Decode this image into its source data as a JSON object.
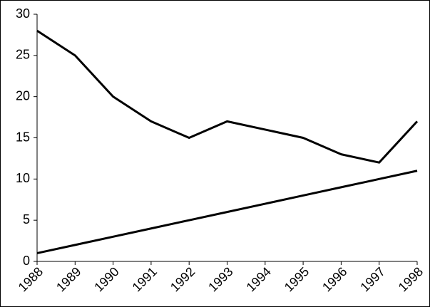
{
  "chart_data": {
    "type": "line",
    "x": [
      1988,
      1989,
      1990,
      1991,
      1992,
      1993,
      1994,
      1995,
      1996,
      1997,
      1998
    ],
    "xlim": [
      1988,
      1998
    ],
    "xticks": [
      1988,
      1989,
      1990,
      1991,
      1992,
      1993,
      1994,
      1995,
      1996,
      1997,
      1998
    ],
    "ylim": [
      0,
      30
    ],
    "yticks": [
      0,
      5,
      10,
      15,
      20,
      25,
      30
    ],
    "series": [
      {
        "color": "#000000",
        "values": [
          28,
          25,
          20,
          17,
          15,
          17,
          16,
          15,
          13,
          12,
          17
        ]
      },
      {
        "color": "#000000",
        "values": [
          1,
          2,
          3,
          4,
          5,
          6,
          7,
          8,
          9,
          10,
          11
        ]
      }
    ]
  }
}
